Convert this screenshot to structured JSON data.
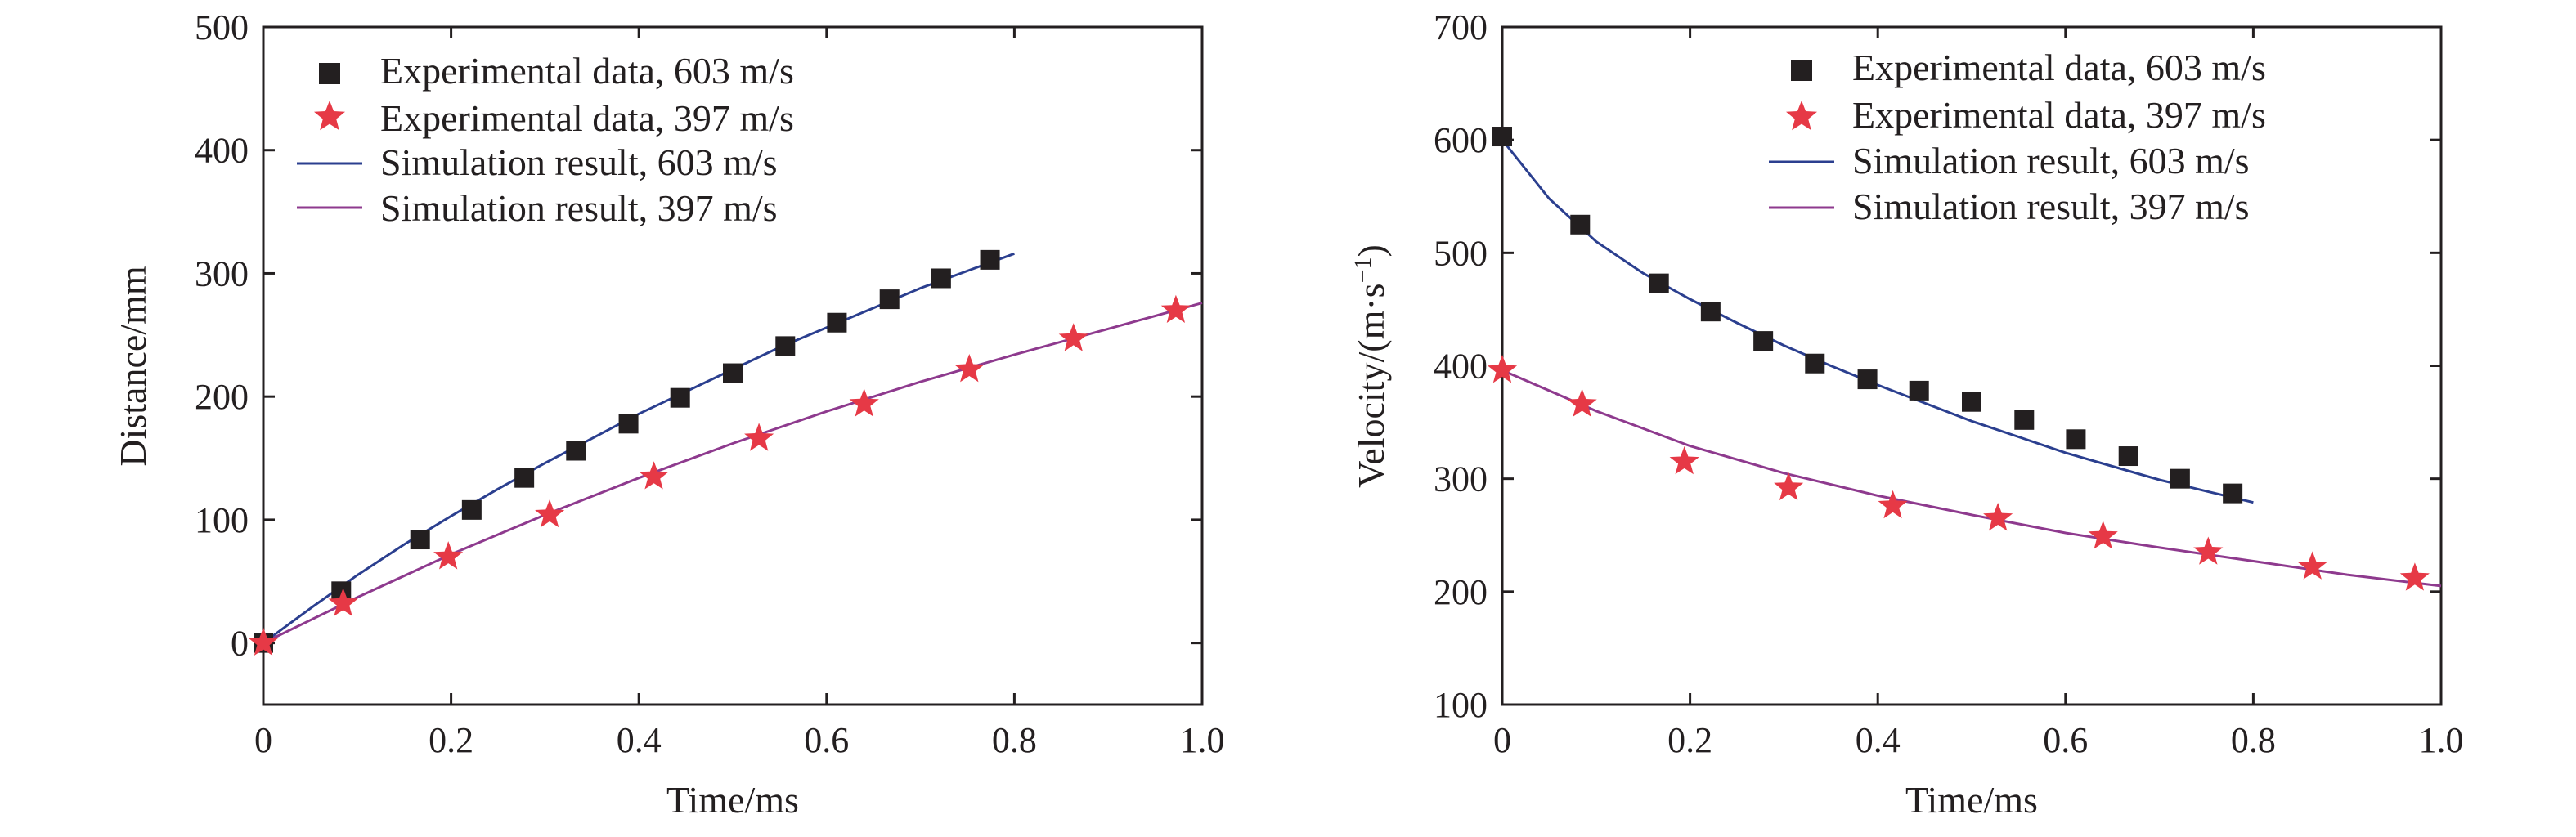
{
  "colors": {
    "sim_603": "#2b3f8f",
    "sim_397": "#8e3a8e",
    "exp_603": "#231f20",
    "exp_397": "#e63946",
    "axis": "#231f20"
  },
  "chart_data": [
    {
      "type": "scatter",
      "xlabel": "Time/ms",
      "ylabel": "Distance/mm",
      "xlim": [
        0,
        1.0
      ],
      "ylim": [
        -50,
        500
      ],
      "xticks": [
        0,
        0.2,
        0.4,
        0.6,
        0.8,
        1.0
      ],
      "xtick_labels": [
        "0",
        "0.2",
        "0.4",
        "0.6",
        "0.8",
        "1.0"
      ],
      "yticks": [
        0,
        100,
        200,
        300,
        400,
        500
      ],
      "ytick_labels": [
        "0",
        "100",
        "200",
        "300",
        "400",
        "500"
      ],
      "grid": false,
      "legend_position": "top-left",
      "legend": [
        "Experimental data, 603 m/s",
        "Experimental data, 397 m/s",
        "Simulation result, 603 m/s",
        "Simulation result, 397 m/s"
      ],
      "series": [
        {
          "name": "Experimental data, 603 m/s",
          "kind": "markers",
          "marker": "square",
          "color_key": "exp_603",
          "x": [
            0,
            0.083,
            0.167,
            0.222,
            0.278,
            0.333,
            0.389,
            0.444,
            0.5,
            0.556,
            0.611,
            0.667,
            0.722,
            0.774
          ],
          "y": [
            0,
            42,
            84,
            108,
            134,
            156,
            178,
            199,
            219,
            241,
            260,
            279,
            296,
            311
          ]
        },
        {
          "name": "Experimental data, 397 m/s",
          "kind": "markers",
          "marker": "star",
          "color_key": "exp_397",
          "x": [
            0,
            0.085,
            0.197,
            0.305,
            0.416,
            0.528,
            0.64,
            0.752,
            0.863,
            0.972
          ],
          "y": [
            0,
            32,
            70,
            104,
            135,
            166,
            194,
            222,
            247,
            270
          ]
        },
        {
          "name": "Simulation result, 603 m/s",
          "kind": "line",
          "color_key": "sim_603",
          "x": [
            0,
            0.05,
            0.1,
            0.15,
            0.2,
            0.25,
            0.3,
            0.35,
            0.4,
            0.45,
            0.5,
            0.55,
            0.6,
            0.65,
            0.7,
            0.75,
            0.8
          ],
          "y": [
            0,
            28,
            55,
            80,
            103,
            125,
            146,
            166,
            186,
            204,
            222,
            240,
            256,
            272,
            288,
            302,
            316
          ]
        },
        {
          "name": "Simulation result, 397 m/s",
          "kind": "line",
          "color_key": "sim_397",
          "x": [
            0,
            0.1,
            0.2,
            0.3,
            0.4,
            0.5,
            0.6,
            0.7,
            0.8,
            0.9,
            1.0
          ],
          "y": [
            0,
            37,
            72,
            104,
            134,
            162,
            188,
            212,
            234,
            255,
            276
          ]
        }
      ]
    },
    {
      "type": "scatter",
      "xlabel": "Time/ms",
      "ylabel": "Velocity/(m·s",
      "ylabel_superscript": "−1",
      "ylabel_close": ")",
      "xlim": [
        0,
        1.0
      ],
      "ylim": [
        100,
        700
      ],
      "xticks": [
        0,
        0.2,
        0.4,
        0.6,
        0.8,
        1.0
      ],
      "xtick_labels": [
        "0",
        "0.2",
        "0.4",
        "0.6",
        "0.8",
        "1.0"
      ],
      "yticks": [
        100,
        200,
        300,
        400,
        500,
        600,
        700
      ],
      "ytick_labels": [
        "100",
        "200",
        "300",
        "400",
        "500",
        "600",
        "700"
      ],
      "grid": false,
      "legend_position": "top-right",
      "legend": [
        "Experimental data, 603 m/s",
        "Experimental data, 397 m/s",
        "Simulation result, 603 m/s",
        "Simulation result, 397 m/s"
      ],
      "series": [
        {
          "name": "Experimental data, 603 m/s",
          "kind": "markers",
          "marker": "square",
          "color_key": "exp_603",
          "x": [
            0,
            0.083,
            0.167,
            0.222,
            0.278,
            0.333,
            0.389,
            0.444,
            0.5,
            0.556,
            0.611,
            0.667,
            0.722,
            0.778
          ],
          "y": [
            603,
            525,
            473,
            448,
            422,
            402,
            388,
            378,
            368,
            352,
            335,
            320,
            300,
            287
          ]
        },
        {
          "name": "Experimental data, 397 m/s",
          "kind": "markers",
          "marker": "star",
          "color_key": "exp_397",
          "x": [
            0,
            0.085,
            0.194,
            0.305,
            0.416,
            0.528,
            0.64,
            0.752,
            0.863,
            0.972
          ],
          "y": [
            396,
            366,
            315,
            292,
            276,
            265,
            249,
            235,
            222,
            212
          ]
        },
        {
          "name": "Simulation result, 603 m/s",
          "kind": "line",
          "color_key": "sim_603",
          "x": [
            0,
            0.05,
            0.1,
            0.15,
            0.2,
            0.25,
            0.3,
            0.35,
            0.4,
            0.45,
            0.5,
            0.55,
            0.6,
            0.65,
            0.7,
            0.75,
            0.8
          ],
          "y": [
            600,
            548,
            510,
            482,
            459,
            438,
            418,
            400,
            383,
            367,
            351,
            337,
            323,
            311,
            299,
            289,
            279
          ]
        },
        {
          "name": "Simulation result, 397 m/s",
          "kind": "line",
          "color_key": "sim_397",
          "x": [
            0,
            0.1,
            0.2,
            0.3,
            0.4,
            0.5,
            0.6,
            0.7,
            0.8,
            0.9,
            1.0
          ],
          "y": [
            396,
            360,
            329,
            305,
            285,
            268,
            252,
            239,
            227,
            215,
            205
          ]
        }
      ]
    }
  ]
}
